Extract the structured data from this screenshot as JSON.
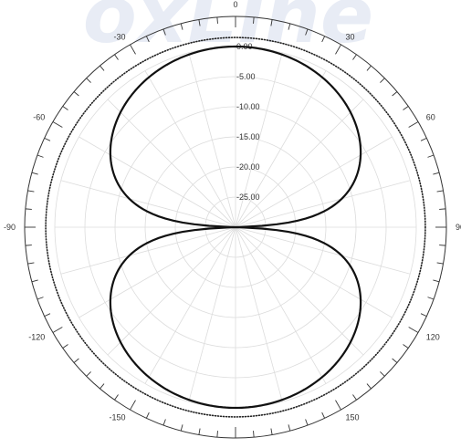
{
  "chart_data": {
    "type": "polar-line",
    "title": "",
    "angle_unit": "degrees",
    "angle_zero": "top",
    "angle_direction": "clockwise",
    "angle_tick_labels": [
      "0",
      "30",
      "60",
      "90",
      "120",
      "150",
      "180",
      "-150",
      "-120",
      "-90",
      "-60",
      "-30"
    ],
    "angle_tick_values": [
      0,
      30,
      60,
      90,
      120,
      150,
      180,
      -150,
      -120,
      -90,
      -60,
      -30
    ],
    "minor_tick_step": 5,
    "radial_ticks": [
      0,
      -5,
      -10,
      -15,
      -20,
      -25
    ],
    "radial_tick_labels": [
      "0.00",
      "-5.00",
      "-10.00",
      "-15.00",
      "-20.00",
      "-25.00"
    ],
    "radial_range": [
      -30,
      0
    ],
    "grid": true,
    "series": [
      {
        "style": "solid",
        "color": "#111111",
        "pattern": "figure-eight",
        "points": [
          {
            "angle": 0,
            "value": 0.0
          },
          {
            "angle": 15,
            "value": -0.3
          },
          {
            "angle": 30,
            "value": -1.25
          },
          {
            "angle": 45,
            "value": -3.0
          },
          {
            "angle": 60,
            "value": -6.0
          },
          {
            "angle": 75,
            "value": -11.7
          },
          {
            "angle": 85,
            "value": -21.0
          },
          {
            "angle": 90,
            "value": -30.0
          },
          {
            "angle": 95,
            "value": -21.0
          },
          {
            "angle": 105,
            "value": -11.7
          },
          {
            "angle": 120,
            "value": -6.0
          },
          {
            "angle": 135,
            "value": -3.0
          },
          {
            "angle": 150,
            "value": -1.25
          },
          {
            "angle": 165,
            "value": -0.3
          },
          {
            "angle": 180,
            "value": 0.0
          },
          {
            "angle": -165,
            "value": -0.3
          },
          {
            "angle": -150,
            "value": -1.25
          },
          {
            "angle": -135,
            "value": -3.0
          },
          {
            "angle": -120,
            "value": -6.0
          },
          {
            "angle": -105,
            "value": -11.7
          },
          {
            "angle": -95,
            "value": -21.0
          },
          {
            "angle": -90,
            "value": -30.0
          },
          {
            "angle": -85,
            "value": -21.0
          },
          {
            "angle": -75,
            "value": -11.7
          },
          {
            "angle": -60,
            "value": -6.0
          },
          {
            "angle": -45,
            "value": -3.0
          },
          {
            "angle": -30,
            "value": -1.25
          },
          {
            "angle": -15,
            "value": -0.3
          }
        ]
      },
      {
        "style": "dotted",
        "color": "#222222",
        "pattern": "omnidirectional",
        "points": [
          {
            "angle": 0,
            "value": 1.5
          },
          {
            "angle": 90,
            "value": 1.5
          },
          {
            "angle": 180,
            "value": 1.5
          },
          {
            "angle": -90,
            "value": 1.5
          }
        ]
      }
    ]
  }
}
